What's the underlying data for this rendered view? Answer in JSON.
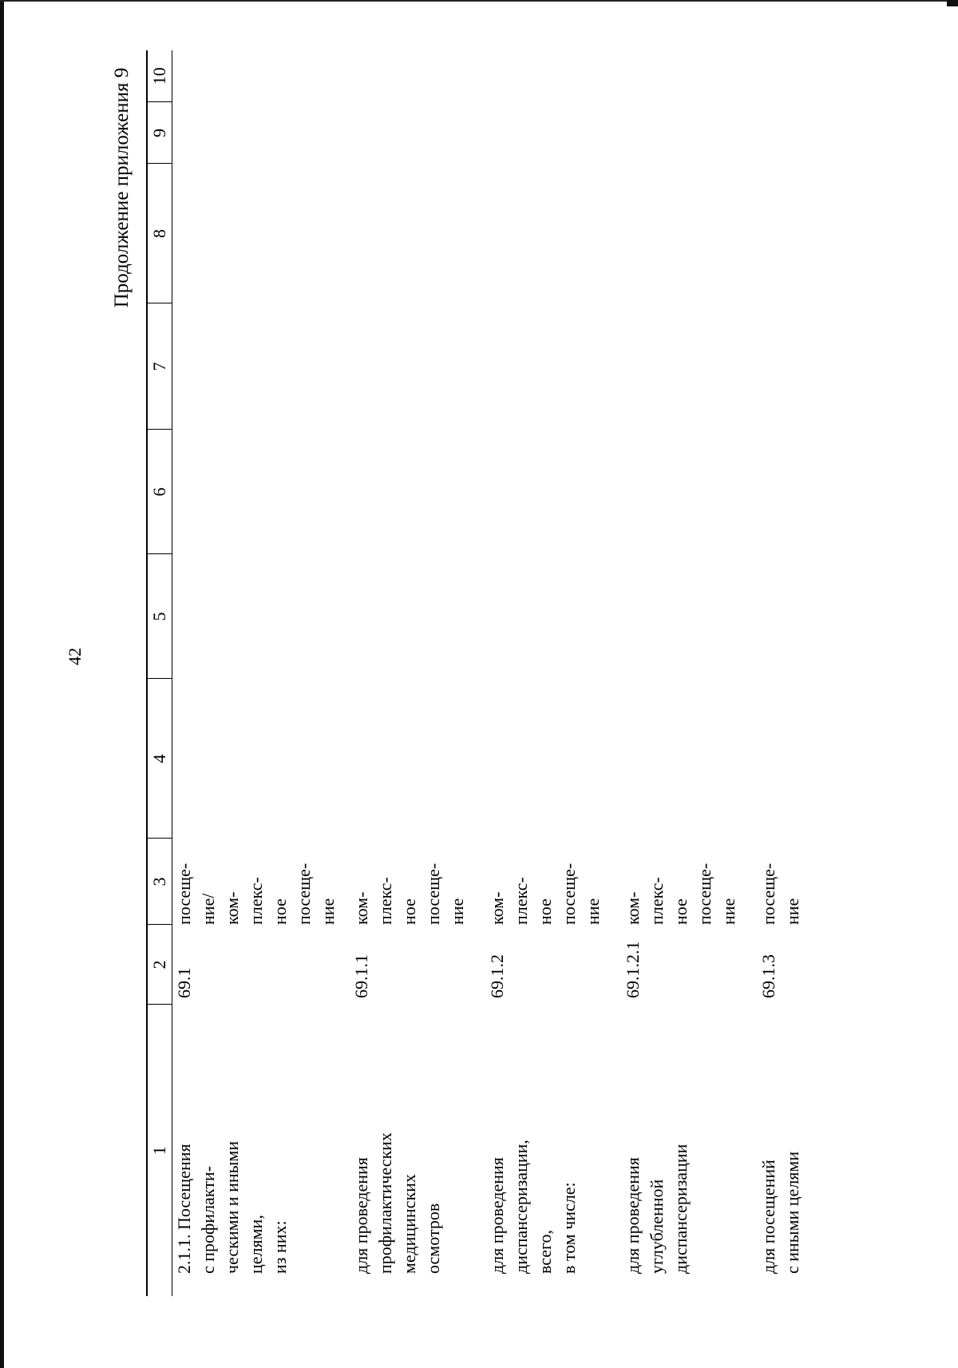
{
  "page_number": "42",
  "continuation_title": "Продолжение приложения 9",
  "columns": [
    "1",
    "2",
    "3",
    "4",
    "5",
    "6",
    "7",
    "8",
    "9",
    "10"
  ],
  "rows": [
    {
      "name": "2.1.1. Посещения\nс профилакти-\nческими и иными\nцелями,\nиз них:",
      "code": "69.1",
      "unit": "посеще-\nние/\nком-\nплекс-\nное\nпосеще-\nние"
    },
    {
      "name": "для проведения\nпрофилактических\nмедицинских\nосмотров",
      "code": "69.1.1",
      "unit": "ком-\nплекс-\nное\nпосеще-\nние"
    },
    {
      "name": "для проведения\nдиспансеризации,\nвсего,\nв том числе:",
      "code": "69.1.2",
      "unit": "ком-\nплекс-\nное\nпосеще-\nние"
    },
    {
      "name": "для проведения\nуглубленной\nдиспансеризации",
      "code": "69.1.2.1",
      "unit": "ком-\nплекс-\nное\nпосеще-\nние"
    },
    {
      "name": "для посещений\nс иными целями",
      "code": "69.1.3",
      "unit": "посеще-\nние"
    }
  ]
}
